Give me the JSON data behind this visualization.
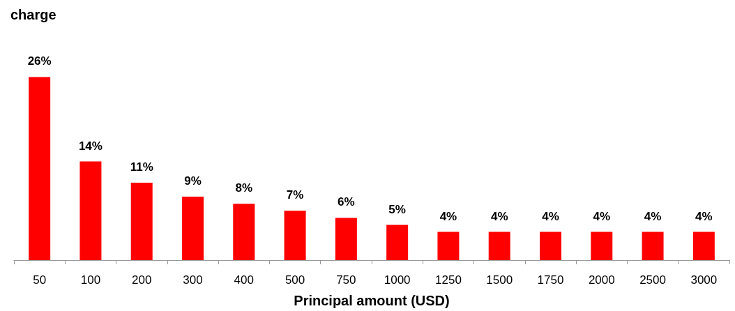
{
  "chart_data": {
    "type": "bar",
    "ylabel": "charge",
    "xlabel": "Principal amount (USD)",
    "categories": [
      "50",
      "100",
      "200",
      "300",
      "400",
      "500",
      "750",
      "1000",
      "1250",
      "1500",
      "1750",
      "2000",
      "2500",
      "3000"
    ],
    "values": [
      26,
      14,
      11,
      9,
      8,
      7,
      6,
      5,
      4,
      4,
      4,
      4,
      4,
      4
    ],
    "value_labels": [
      "26%",
      "14%",
      "11%",
      "9%",
      "8%",
      "7%",
      "6%",
      "5%",
      "4%",
      "4%",
      "4%",
      "4%",
      "4%",
      "4%"
    ],
    "color": "#ff0000"
  }
}
